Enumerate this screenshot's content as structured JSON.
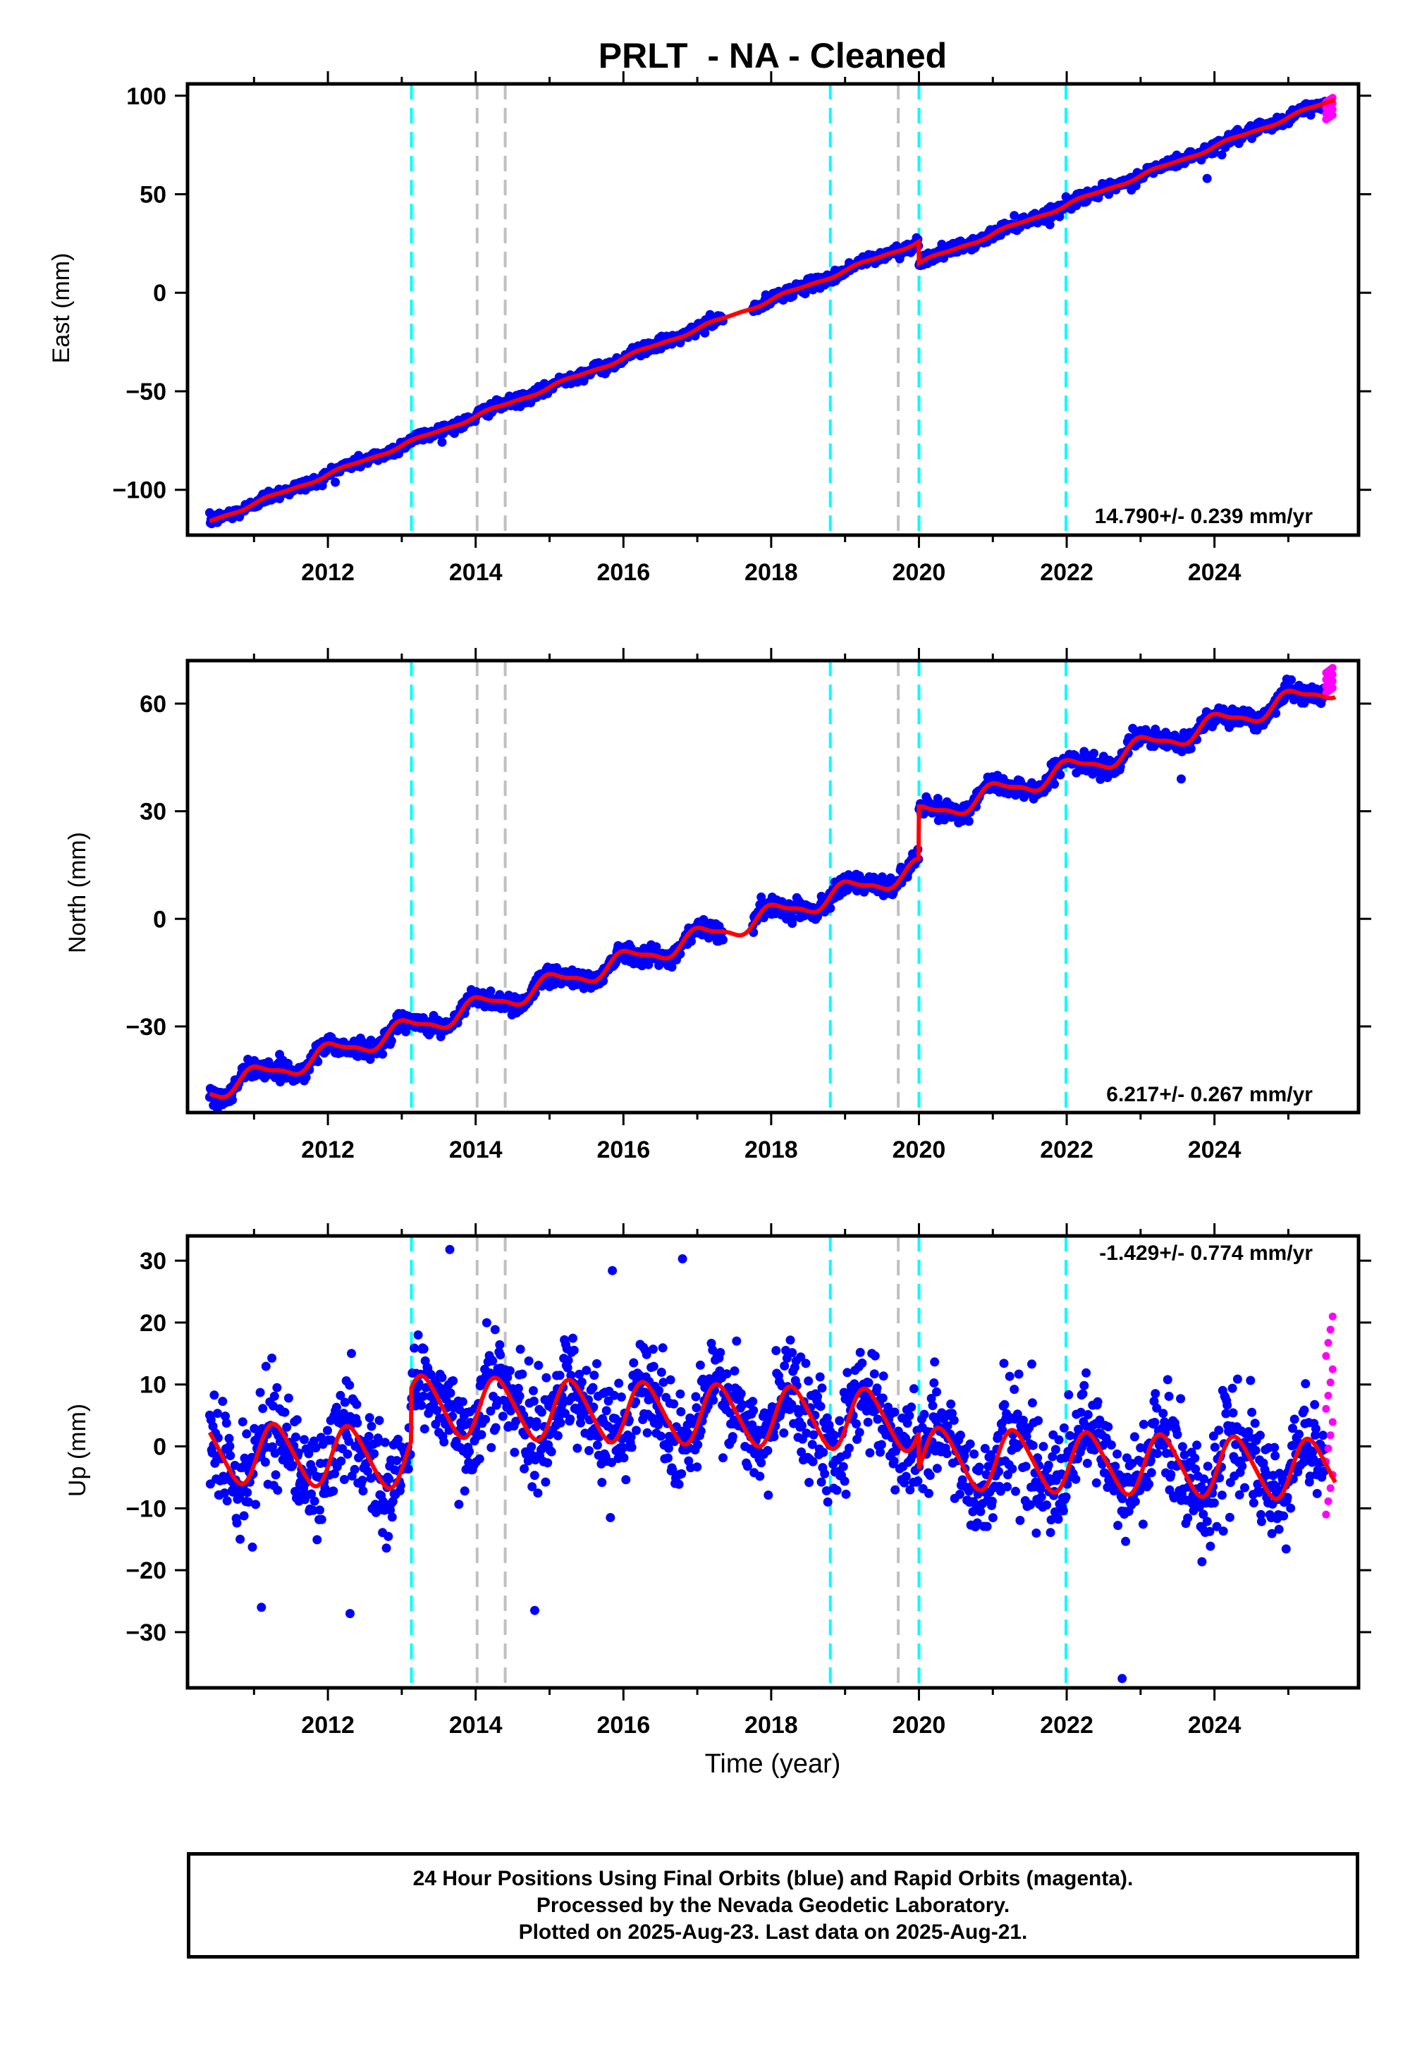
{
  "title": "PRLT  - NA - Cleaned",
  "xlabel": "Time (year)",
  "footer": {
    "line1": "24 Hour Positions Using Final Orbits (blue) and Rapid Orbits (magenta).",
    "line2": "Processed by the Nevada Geodetic Laboratory.",
    "line3": "Plotted on 2025-Aug-23. Last data on 2025-Aug-21."
  },
  "colors": {
    "final_orbits": "#0000ff",
    "rapid_orbits": "#ff00ff",
    "model_fit": "#ff0000",
    "equipment_change": "#00ffff",
    "earthquake": "#c0c0c0"
  },
  "chart_data": [
    {
      "type": "scatter",
      "name": "east",
      "ylabel": "East (mm)",
      "rate_label": "14.790+/- 0.239 mm/yr",
      "xlim": [
        2010.1,
        2025.95
      ],
      "ylim": [
        -123,
        106
      ],
      "xticks": [
        2012,
        2014,
        2016,
        2018,
        2020,
        2022,
        2024
      ],
      "yticks": [
        100,
        50,
        0,
        -50,
        -100
      ],
      "ytick_labels": [
        "100",
        "50",
        "0",
        "−50",
        "−100"
      ],
      "equipment_changes": [
        2013.13,
        2018.8,
        2020.0,
        2021.99
      ],
      "earthquakes": [
        2014.02,
        2014.4,
        2019.72
      ],
      "data_start": 2010.4,
      "final_end": 2025.5,
      "rapid_end": 2025.64,
      "trend": {
        "t0": 2010.4,
        "y0": -116.0,
        "rate": 14.79
      },
      "offsets": [
        {
          "t": 2020.0,
          "dy": -11.0
        }
      ],
      "seasonal": {
        "amplitude": 0.8,
        "phase": 0.0,
        "semi_amplitude": 0.3
      },
      "noise_sd": 1.5,
      "outliers": [
        [
          2023.9,
          58.0
        ],
        [
          2013.8,
          -69.0
        ],
        [
          2024.1,
          70.0
        ]
      ],
      "rapid_range": [
        88,
        99
      ]
    },
    {
      "type": "scatter",
      "name": "north",
      "ylabel": "North (mm)",
      "rate_label": "6.217+/- 0.267 mm/yr",
      "xlim": [
        2010.1,
        2025.95
      ],
      "ylim": [
        -54,
        72
      ],
      "xticks": [
        2012,
        2014,
        2016,
        2018,
        2020,
        2022,
        2024
      ],
      "yticks": [
        60,
        30,
        0,
        -30
      ],
      "ytick_labels": [
        "60",
        "30",
        "0",
        "−30"
      ],
      "equipment_changes": [
        2013.13,
        2018.8,
        2020.0,
        2021.99
      ],
      "earthquakes": [
        2014.02,
        2014.4,
        2019.72
      ],
      "data_start": 2010.4,
      "final_end": 2025.5,
      "rapid_end": 2025.64,
      "trend": {
        "t0": 2010.4,
        "y0": -48.0,
        "rate": 6.45
      },
      "offsets": [
        {
          "t": 2020.0,
          "dy": 14.5
        }
      ],
      "seasonal": {
        "amplitude": 2.6,
        "phase": 1.3,
        "semi_amplitude": 0.8
      },
      "noise_sd": 1.3,
      "outliers": [
        [
          2023.55,
          39.0
        ],
        [
          2010.45,
          -52.0
        ]
      ],
      "rapid_range": [
        63,
        70
      ]
    },
    {
      "type": "scatter",
      "name": "up",
      "ylabel": "Up (mm)",
      "rate_label": "-1.429+/- 0.774 mm/yr",
      "xlim": [
        2010.1,
        2025.95
      ],
      "ylim": [
        -39,
        34
      ],
      "xticks": [
        2012,
        2014,
        2016,
        2018,
        2020,
        2022,
        2024
      ],
      "yticks": [
        30,
        20,
        10,
        0,
        -10,
        -20,
        -30
      ],
      "ytick_labels": [
        "30",
        "20",
        "10",
        "0",
        "−10",
        "−20",
        "−30"
      ],
      "equipment_changes": [
        2013.13,
        2018.8,
        2020.0,
        2021.99
      ],
      "earthquakes": [
        2014.02,
        2014.4,
        2019.72
      ],
      "data_start": 2010.4,
      "final_end": 2025.5,
      "rapid_end": 2025.64,
      "trend": {
        "t0": 2010.4,
        "y0": -1.0,
        "rate": -0.35
      },
      "offsets": [
        {
          "t": 2013.13,
          "dy": 8.5
        },
        {
          "t": 2020.0,
          "dy": -6.0
        }
      ],
      "seasonal": {
        "amplitude": 4.8,
        "phase": -0.3,
        "semi_amplitude": 0.6
      },
      "noise_sd": 4.2,
      "outliers": [
        [
          2013.65,
          31.8
        ],
        [
          2022.75,
          -37.5
        ],
        [
          2014.8,
          -26.5
        ],
        [
          2012.3,
          -27.0
        ],
        [
          2016.8,
          30.3
        ],
        [
          2015.85,
          28.4
        ],
        [
          2011.1,
          -26.0
        ]
      ],
      "rapid_range": [
        -11,
        21
      ]
    }
  ]
}
